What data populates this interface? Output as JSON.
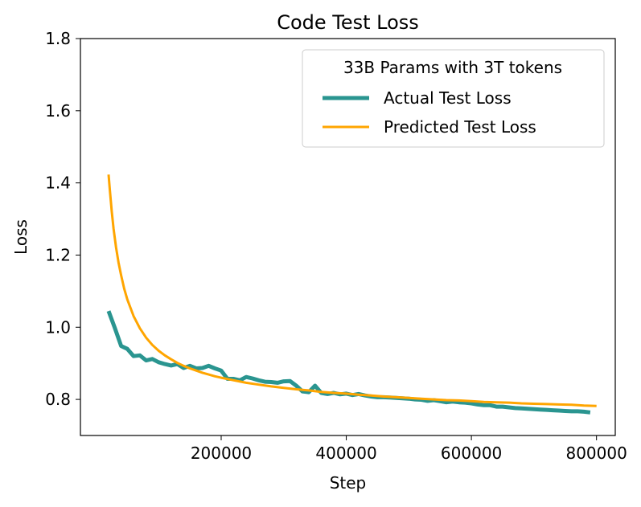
{
  "chart_data": {
    "type": "line",
    "title": "Code Test Loss",
    "xlabel": "Step",
    "ylabel": "Loss",
    "xlim": [
      -25000,
      830000
    ],
    "ylim": [
      0.7,
      1.8
    ],
    "x_ticks": [
      200000,
      400000,
      600000,
      800000
    ],
    "x_tick_labels": [
      "200000",
      "400000",
      "600000",
      "800000"
    ],
    "y_ticks": [
      0.8,
      1.0,
      1.2,
      1.4,
      1.6,
      1.8
    ],
    "y_tick_labels": [
      "0.8",
      "1.0",
      "1.2",
      "1.4",
      "1.6",
      "1.8"
    ],
    "grid": false,
    "legend": {
      "title": "33B Params with 3T tokens",
      "placement": "top-right"
    },
    "series": [
      {
        "name": "Actual Test Loss",
        "color": "#2a9590",
        "x": [
          20000,
          30000,
          40000,
          50000,
          60000,
          70000,
          80000,
          90000,
          100000,
          110000,
          120000,
          130000,
          140000,
          150000,
          160000,
          170000,
          180000,
          190000,
          200000,
          210000,
          220000,
          230000,
          240000,
          250000,
          260000,
          270000,
          280000,
          290000,
          300000,
          310000,
          320000,
          330000,
          340000,
          350000,
          360000,
          370000,
          380000,
          390000,
          400000,
          410000,
          420000,
          430000,
          440000,
          450000,
          460000,
          470000,
          480000,
          490000,
          500000,
          510000,
          520000,
          530000,
          540000,
          550000,
          560000,
          570000,
          580000,
          590000,
          600000,
          610000,
          620000,
          630000,
          640000,
          650000,
          660000,
          670000,
          680000,
          690000,
          700000,
          710000,
          720000,
          730000,
          740000,
          750000,
          760000,
          770000,
          780000,
          790000
        ],
        "values": [
          1.045,
          0.998,
          0.948,
          0.94,
          0.92,
          0.922,
          0.908,
          0.912,
          0.903,
          0.898,
          0.894,
          0.898,
          0.887,
          0.893,
          0.886,
          0.887,
          0.893,
          0.886,
          0.88,
          0.857,
          0.857,
          0.853,
          0.862,
          0.858,
          0.853,
          0.849,
          0.848,
          0.846,
          0.85,
          0.851,
          0.838,
          0.822,
          0.82,
          0.838,
          0.818,
          0.815,
          0.818,
          0.814,
          0.816,
          0.812,
          0.815,
          0.811,
          0.808,
          0.806,
          0.806,
          0.805,
          0.804,
          0.803,
          0.802,
          0.8,
          0.799,
          0.796,
          0.798,
          0.795,
          0.792,
          0.794,
          0.792,
          0.791,
          0.789,
          0.786,
          0.784,
          0.784,
          0.78,
          0.78,
          0.778,
          0.776,
          0.775,
          0.774,
          0.773,
          0.772,
          0.771,
          0.77,
          0.769,
          0.768,
          0.767,
          0.767,
          0.766,
          0.764
        ]
      },
      {
        "name": "Predicted Test Loss",
        "color": "#ffa500",
        "x": [
          20000,
          22000,
          25000,
          28000,
          32000,
          36000,
          40000,
          45000,
          50000,
          60000,
          70000,
          80000,
          90000,
          100000,
          110000,
          120000,
          130000,
          140000,
          150000,
          160000,
          170000,
          180000,
          190000,
          200000,
          220000,
          240000,
          260000,
          280000,
          300000,
          320000,
          340000,
          360000,
          380000,
          400000,
          420000,
          440000,
          460000,
          480000,
          500000,
          520000,
          540000,
          560000,
          580000,
          600000,
          620000,
          640000,
          660000,
          680000,
          700000,
          720000,
          740000,
          760000,
          780000,
          800000
        ],
        "values": [
          1.423,
          1.38,
          1.322,
          1.273,
          1.221,
          1.179,
          1.144,
          1.107,
          1.077,
          1.031,
          0.997,
          0.971,
          0.951,
          0.935,
          0.922,
          0.911,
          0.901,
          0.893,
          0.886,
          0.88,
          0.874,
          0.869,
          0.864,
          0.86,
          0.853,
          0.846,
          0.841,
          0.836,
          0.832,
          0.828,
          0.825,
          0.821,
          0.818,
          0.816,
          0.813,
          0.811,
          0.808,
          0.806,
          0.804,
          0.802,
          0.8,
          0.798,
          0.797,
          0.795,
          0.793,
          0.792,
          0.791,
          0.789,
          0.788,
          0.787,
          0.786,
          0.785,
          0.783,
          0.782
        ]
      }
    ]
  }
}
